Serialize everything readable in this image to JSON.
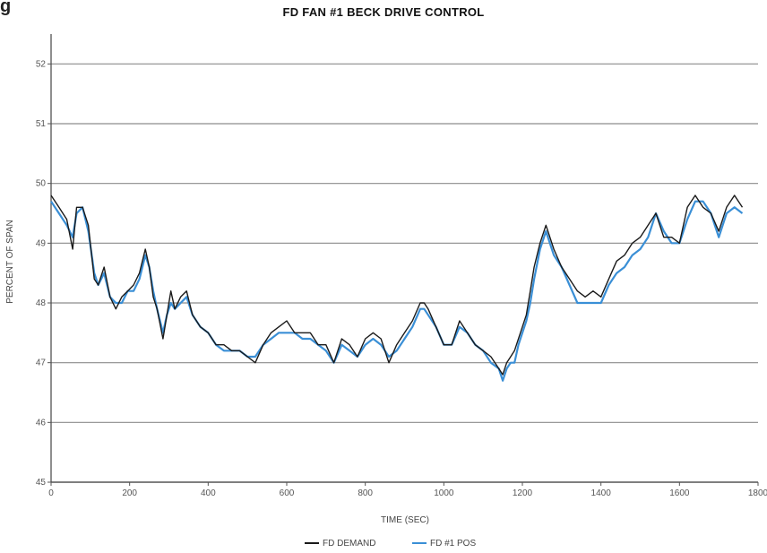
{
  "corner_fragment": "g",
  "chart_data": {
    "type": "line",
    "title": "FD FAN #1 BECK DRIVE CONTROL",
    "xlabel": "TIME (SEC)",
    "ylabel": "PERCENT OF SPAN",
    "xlim": [
      0,
      1800
    ],
    "ylim": [
      45,
      52.5
    ],
    "x_ticks": [
      "0",
      "200",
      "400",
      "600",
      "800",
      "1000",
      "1200",
      "1400",
      "1600",
      "1800"
    ],
    "y_ticks": [
      "45",
      "46",
      "47",
      "48",
      "49",
      "50",
      "51",
      "52"
    ],
    "grid": "horizontal",
    "legend_position": "bottom-center",
    "x": [
      0,
      20,
      40,
      55,
      65,
      80,
      95,
      110,
      120,
      135,
      150,
      165,
      180,
      195,
      210,
      225,
      240,
      250,
      260,
      270,
      285,
      295,
      305,
      315,
      330,
      345,
      360,
      380,
      400,
      420,
      440,
      460,
      480,
      500,
      520,
      540,
      560,
      580,
      600,
      620,
      640,
      660,
      680,
      700,
      720,
      740,
      760,
      780,
      800,
      820,
      840,
      860,
      880,
      900,
      920,
      940,
      950,
      960,
      980,
      1000,
      1020,
      1040,
      1060,
      1080,
      1100,
      1120,
      1140,
      1150,
      1160,
      1170,
      1180,
      1190,
      1200,
      1210,
      1220,
      1230,
      1245,
      1260,
      1280,
      1300,
      1320,
      1340,
      1360,
      1380,
      1400,
      1420,
      1440,
      1460,
      1480,
      1500,
      1520,
      1540,
      1560,
      1580,
      1600,
      1620,
      1640,
      1660,
      1680,
      1700,
      1720,
      1740,
      1760
    ],
    "series": [
      {
        "name": "FD DEMAND",
        "color": "#1a1a1a",
        "values": [
          49.8,
          49.6,
          49.4,
          48.9,
          49.6,
          49.6,
          49.3,
          48.4,
          48.3,
          48.6,
          48.1,
          47.9,
          48.1,
          48.2,
          48.3,
          48.5,
          48.9,
          48.6,
          48.1,
          47.9,
          47.4,
          47.8,
          48.2,
          47.9,
          48.1,
          48.2,
          47.8,
          47.6,
          47.5,
          47.3,
          47.3,
          47.2,
          47.2,
          47.1,
          47.0,
          47.3,
          47.5,
          47.6,
          47.7,
          47.5,
          47.5,
          47.5,
          47.3,
          47.3,
          47.0,
          47.4,
          47.3,
          47.1,
          47.4,
          47.5,
          47.4,
          47.0,
          47.3,
          47.5,
          47.7,
          48.0,
          48.0,
          47.9,
          47.6,
          47.3,
          47.3,
          47.7,
          47.5,
          47.3,
          47.2,
          47.1,
          46.9,
          46.8,
          47.0,
          47.1,
          47.2,
          47.4,
          47.6,
          47.8,
          48.2,
          48.6,
          49.0,
          49.3,
          48.9,
          48.6,
          48.4,
          48.2,
          48.1,
          48.2,
          48.1,
          48.4,
          48.7,
          48.8,
          49.0,
          49.1,
          49.3,
          49.5,
          49.1,
          49.1,
          49.0,
          49.6,
          49.8,
          49.6,
          49.5,
          49.2,
          49.6,
          49.8,
          49.6
        ]
      },
      {
        "name": "FD #1 POS",
        "color": "#3a8fd6",
        "values": [
          49.7,
          49.5,
          49.3,
          49.1,
          49.5,
          49.6,
          49.2,
          48.5,
          48.3,
          48.5,
          48.1,
          48.0,
          48.0,
          48.2,
          48.2,
          48.4,
          48.8,
          48.6,
          48.2,
          47.9,
          47.5,
          47.8,
          48.0,
          47.9,
          48.0,
          48.1,
          47.8,
          47.6,
          47.5,
          47.3,
          47.2,
          47.2,
          47.2,
          47.1,
          47.1,
          47.3,
          47.4,
          47.5,
          47.5,
          47.5,
          47.4,
          47.4,
          47.3,
          47.2,
          47.0,
          47.3,
          47.2,
          47.1,
          47.3,
          47.4,
          47.3,
          47.1,
          47.2,
          47.4,
          47.6,
          47.9,
          47.9,
          47.8,
          47.6,
          47.3,
          47.3,
          47.6,
          47.5,
          47.3,
          47.2,
          47.0,
          46.9,
          46.7,
          46.9,
          47.0,
          47.0,
          47.3,
          47.5,
          47.7,
          48.0,
          48.4,
          48.9,
          49.2,
          48.8,
          48.6,
          48.3,
          48.0,
          48.0,
          48.0,
          48.0,
          48.3,
          48.5,
          48.6,
          48.8,
          48.9,
          49.1,
          49.5,
          49.2,
          49.0,
          49.0,
          49.4,
          49.7,
          49.7,
          49.5,
          49.1,
          49.5,
          49.6,
          49.5
        ]
      }
    ]
  }
}
